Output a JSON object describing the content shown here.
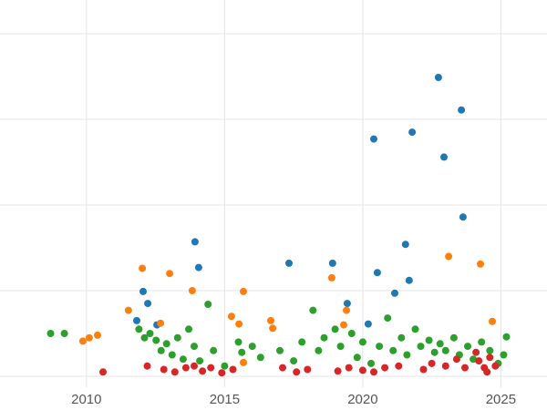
{
  "chart": {
    "background": "#ffffff",
    "grid_color": "#e5e5e5",
    "tick_label_color": "#555555"
  },
  "chart_data": {
    "type": "scatter",
    "title": "",
    "xlabel": "",
    "ylabel": "",
    "legend_position": "none",
    "grid": true,
    "x_ticks": [
      2010,
      2015,
      2020,
      2025
    ],
    "x_range": [
      2006.87,
      2026.67
    ],
    "y_range": [
      -0.394,
      4.394
    ],
    "y_gridlines": [
      0,
      1,
      2,
      3,
      4
    ],
    "marker_diameter_px": 8,
    "series": [
      {
        "name": "series-blue",
        "color": "#1f77b4",
        "points": [
          [
            2011.82,
            0.65
          ],
          [
            2012.05,
            0.99
          ],
          [
            2012.22,
            0.85
          ],
          [
            2012.55,
            0.6
          ],
          [
            2013.93,
            1.57
          ],
          [
            2014.06,
            1.27
          ],
          [
            2017.33,
            1.32
          ],
          [
            2018.91,
            1.32
          ],
          [
            2019.44,
            0.85
          ],
          [
            2020.2,
            0.61
          ],
          [
            2020.4,
            2.77
          ],
          [
            2020.53,
            1.21
          ],
          [
            2021.16,
            0.97
          ],
          [
            2021.55,
            1.54
          ],
          [
            2021.68,
            1.12
          ],
          [
            2021.79,
            2.85
          ],
          [
            2022.74,
            3.49
          ],
          [
            2022.94,
            2.56
          ],
          [
            2023.57,
            3.11
          ],
          [
            2023.63,
            1.86
          ]
        ]
      },
      {
        "name": "series-orange",
        "color": "#ff7f0e",
        "points": [
          [
            2009.87,
            0.41
          ],
          [
            2010.1,
            0.45
          ],
          [
            2010.4,
            0.48
          ],
          [
            2011.52,
            0.77
          ],
          [
            2012.02,
            1.26
          ],
          [
            2012.68,
            0.62
          ],
          [
            2013.01,
            1.2
          ],
          [
            2013.83,
            1.0
          ],
          [
            2015.25,
            0.7
          ],
          [
            2015.52,
            0.61
          ],
          [
            2015.68,
            0.99
          ],
          [
            2015.68,
            0.16
          ],
          [
            2016.67,
            0.65
          ],
          [
            2016.74,
            0.56
          ],
          [
            2018.88,
            1.15
          ],
          [
            2019.31,
            0.6
          ],
          [
            2019.41,
            0.77
          ],
          [
            2023.11,
            1.4
          ],
          [
            2024.26,
            1.31
          ],
          [
            2024.69,
            0.64
          ]
        ]
      },
      {
        "name": "series-green",
        "color": "#2ca02c",
        "points": [
          [
            2008.7,
            0.5
          ],
          [
            2009.2,
            0.5
          ],
          [
            2011.9,
            0.55
          ],
          [
            2012.1,
            0.45
          ],
          [
            2012.3,
            0.5
          ],
          [
            2012.52,
            0.42
          ],
          [
            2012.7,
            0.3
          ],
          [
            2012.9,
            0.38
          ],
          [
            2013.1,
            0.25
          ],
          [
            2013.3,
            0.45
          ],
          [
            2013.5,
            0.2
          ],
          [
            2013.7,
            0.55
          ],
          [
            2013.9,
            0.35
          ],
          [
            2014.1,
            0.18
          ],
          [
            2014.4,
            0.84
          ],
          [
            2014.6,
            0.3
          ],
          [
            2015.0,
            0.12
          ],
          [
            2015.5,
            0.4
          ],
          [
            2015.62,
            0.28
          ],
          [
            2016.0,
            0.35
          ],
          [
            2016.3,
            0.22
          ],
          [
            2017.0,
            0.3
          ],
          [
            2017.5,
            0.18
          ],
          [
            2017.8,
            0.4
          ],
          [
            2018.2,
            0.77
          ],
          [
            2018.4,
            0.3
          ],
          [
            2018.6,
            0.45
          ],
          [
            2019.0,
            0.55
          ],
          [
            2019.2,
            0.35
          ],
          [
            2019.6,
            0.5
          ],
          [
            2019.8,
            0.22
          ],
          [
            2020.0,
            0.4
          ],
          [
            2020.3,
            0.15
          ],
          [
            2020.6,
            0.35
          ],
          [
            2020.9,
            0.68
          ],
          [
            2021.1,
            0.3
          ],
          [
            2021.4,
            0.45
          ],
          [
            2021.6,
            0.25
          ],
          [
            2021.9,
            0.55
          ],
          [
            2022.1,
            0.35
          ],
          [
            2022.4,
            0.42
          ],
          [
            2022.6,
            0.28
          ],
          [
            2022.8,
            0.38
          ],
          [
            2023.0,
            0.3
          ],
          [
            2023.3,
            0.45
          ],
          [
            2023.5,
            0.25
          ],
          [
            2023.8,
            0.35
          ],
          [
            2024.0,
            0.2
          ],
          [
            2024.3,
            0.4
          ],
          [
            2024.6,
            0.3
          ],
          [
            2024.9,
            0.15
          ],
          [
            2025.1,
            0.25
          ],
          [
            2025.2,
            0.46
          ]
        ]
      },
      {
        "name": "series-red",
        "color": "#d62728",
        "points": [
          [
            2010.6,
            0.05
          ],
          [
            2012.2,
            0.12
          ],
          [
            2012.8,
            0.08
          ],
          [
            2013.2,
            0.05
          ],
          [
            2013.6,
            0.1
          ],
          [
            2013.9,
            0.12
          ],
          [
            2014.2,
            0.06
          ],
          [
            2014.5,
            0.1
          ],
          [
            2014.9,
            0.04
          ],
          [
            2015.3,
            0.08
          ],
          [
            2017.1,
            0.1
          ],
          [
            2017.6,
            0.05
          ],
          [
            2018.0,
            0.08
          ],
          [
            2019.1,
            0.06
          ],
          [
            2019.5,
            0.1
          ],
          [
            2020.0,
            0.07
          ],
          [
            2020.4,
            0.05
          ],
          [
            2020.8,
            0.1
          ],
          [
            2021.3,
            0.12
          ],
          [
            2022.2,
            0.08
          ],
          [
            2022.5,
            0.15
          ],
          [
            2023.0,
            0.12
          ],
          [
            2023.4,
            0.2
          ],
          [
            2023.7,
            0.1
          ],
          [
            2024.1,
            0.28
          ],
          [
            2024.2,
            0.18
          ],
          [
            2024.4,
            0.1
          ],
          [
            2024.5,
            0.05
          ],
          [
            2024.6,
            0.22
          ],
          [
            2024.8,
            0.12
          ]
        ]
      }
    ]
  }
}
